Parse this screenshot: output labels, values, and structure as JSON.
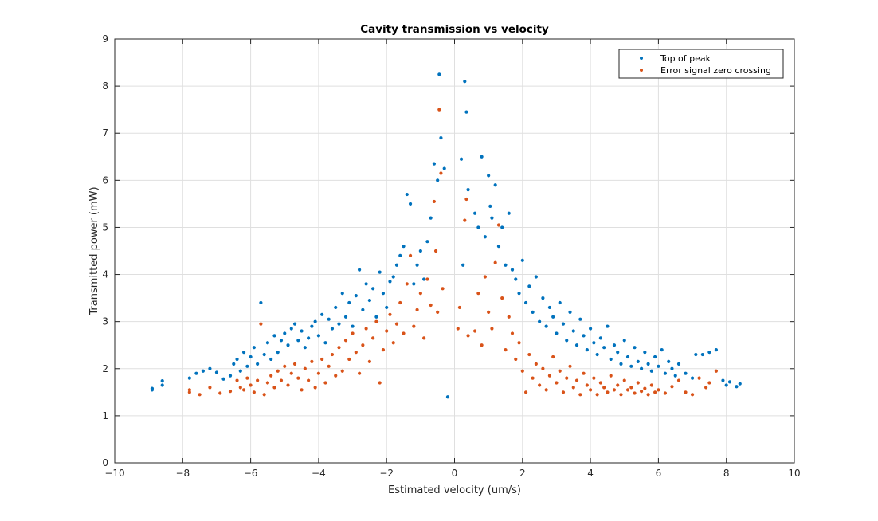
{
  "chart_data": {
    "type": "scatter",
    "title": "Cavity transmission vs velocity",
    "xlabel": "Estimated velocity (um/s)",
    "ylabel": "Transmitted power (mW)",
    "xlim": [
      -10,
      10
    ],
    "ylim": [
      0,
      9
    ],
    "xticks": [
      -10,
      -8,
      -6,
      -4,
      -2,
      0,
      2,
      4,
      6,
      8,
      10
    ],
    "yticks": [
      0,
      1,
      2,
      3,
      4,
      5,
      6,
      7,
      8,
      9
    ],
    "grid": true,
    "legend_position": "top-right",
    "series": [
      {
        "name": "Top of peak",
        "color": "#0072bd",
        "points": [
          [
            -8.9,
            1.55
          ],
          [
            -8.9,
            1.58
          ],
          [
            -8.6,
            1.65
          ],
          [
            -8.6,
            1.74
          ],
          [
            -7.8,
            1.8
          ],
          [
            -7.6,
            1.9
          ],
          [
            -7.4,
            1.95
          ],
          [
            -7.2,
            2.0
          ],
          [
            -7.0,
            1.92
          ],
          [
            -6.8,
            1.78
          ],
          [
            -6.6,
            1.85
          ],
          [
            -6.5,
            2.1
          ],
          [
            -6.4,
            2.2
          ],
          [
            -6.3,
            1.95
          ],
          [
            -6.2,
            2.35
          ],
          [
            -6.1,
            2.05
          ],
          [
            -6.0,
            2.25
          ],
          [
            -5.9,
            2.45
          ],
          [
            -5.8,
            2.1
          ],
          [
            -5.7,
            3.4
          ],
          [
            -5.6,
            2.3
          ],
          [
            -5.5,
            2.55
          ],
          [
            -5.4,
            2.2
          ],
          [
            -5.3,
            2.7
          ],
          [
            -5.2,
            2.35
          ],
          [
            -5.1,
            2.6
          ],
          [
            -5.0,
            2.75
          ],
          [
            -4.9,
            2.5
          ],
          [
            -4.8,
            2.85
          ],
          [
            -4.7,
            2.95
          ],
          [
            -4.6,
            2.6
          ],
          [
            -4.5,
            2.8
          ],
          [
            -4.4,
            2.45
          ],
          [
            -4.3,
            2.65
          ],
          [
            -4.2,
            2.9
          ],
          [
            -4.1,
            3.0
          ],
          [
            -4.0,
            2.7
          ],
          [
            -3.9,
            3.15
          ],
          [
            -3.8,
            2.55
          ],
          [
            -3.7,
            3.05
          ],
          [
            -3.6,
            2.85
          ],
          [
            -3.5,
            3.3
          ],
          [
            -3.4,
            2.95
          ],
          [
            -3.3,
            3.6
          ],
          [
            -3.2,
            3.1
          ],
          [
            -3.1,
            3.4
          ],
          [
            -3.0,
            2.9
          ],
          [
            -2.9,
            3.55
          ],
          [
            -2.8,
            4.1
          ],
          [
            -2.7,
            3.25
          ],
          [
            -2.6,
            3.8
          ],
          [
            -2.5,
            3.45
          ],
          [
            -2.4,
            3.7
          ],
          [
            -2.3,
            3.1
          ],
          [
            -2.2,
            4.05
          ],
          [
            -2.1,
            3.6
          ],
          [
            -2.0,
            3.3
          ],
          [
            -1.9,
            3.85
          ],
          [
            -1.8,
            3.95
          ],
          [
            -1.7,
            4.2
          ],
          [
            -1.6,
            4.4
          ],
          [
            -1.5,
            4.6
          ],
          [
            -1.4,
            5.7
          ],
          [
            -1.3,
            5.5
          ],
          [
            -1.2,
            3.8
          ],
          [
            -1.1,
            4.2
          ],
          [
            -1.0,
            4.5
          ],
          [
            -0.9,
            3.9
          ],
          [
            -0.8,
            4.7
          ],
          [
            -0.7,
            5.2
          ],
          [
            -0.6,
            6.35
          ],
          [
            -0.5,
            6.0
          ],
          [
            -0.45,
            8.25
          ],
          [
            -0.4,
            6.9
          ],
          [
            -0.3,
            6.25
          ],
          [
            -0.2,
            1.4
          ],
          [
            0.2,
            6.45
          ],
          [
            0.3,
            8.1
          ],
          [
            0.35,
            7.45
          ],
          [
            0.25,
            4.2
          ],
          [
            0.4,
            5.8
          ],
          [
            0.6,
            5.3
          ],
          [
            0.7,
            5.0
          ],
          [
            0.8,
            6.5
          ],
          [
            0.9,
            4.8
          ],
          [
            1.0,
            6.1
          ],
          [
            1.05,
            5.45
          ],
          [
            1.1,
            5.2
          ],
          [
            1.2,
            5.9
          ],
          [
            1.3,
            4.6
          ],
          [
            1.4,
            5.0
          ],
          [
            1.5,
            4.2
          ],
          [
            1.6,
            5.3
          ],
          [
            1.7,
            4.1
          ],
          [
            1.8,
            3.9
          ],
          [
            1.9,
            3.6
          ],
          [
            2.0,
            4.3
          ],
          [
            2.1,
            3.4
          ],
          [
            2.2,
            3.75
          ],
          [
            2.3,
            3.2
          ],
          [
            2.4,
            3.95
          ],
          [
            2.5,
            3.0
          ],
          [
            2.6,
            3.5
          ],
          [
            2.7,
            2.9
          ],
          [
            2.8,
            3.3
          ],
          [
            2.9,
            3.1
          ],
          [
            3.0,
            2.75
          ],
          [
            3.1,
            3.4
          ],
          [
            3.2,
            2.95
          ],
          [
            3.3,
            2.6
          ],
          [
            3.4,
            3.2
          ],
          [
            3.5,
            2.8
          ],
          [
            3.6,
            2.5
          ],
          [
            3.7,
            3.05
          ],
          [
            3.8,
            2.7
          ],
          [
            3.9,
            2.4
          ],
          [
            4.0,
            2.85
          ],
          [
            4.1,
            2.55
          ],
          [
            4.2,
            2.3
          ],
          [
            4.3,
            2.65
          ],
          [
            4.4,
            2.45
          ],
          [
            4.5,
            2.9
          ],
          [
            4.6,
            2.2
          ],
          [
            4.7,
            2.5
          ],
          [
            4.8,
            2.35
          ],
          [
            4.9,
            2.1
          ],
          [
            5.0,
            2.6
          ],
          [
            5.1,
            2.25
          ],
          [
            5.2,
            2.05
          ],
          [
            5.3,
            2.45
          ],
          [
            5.4,
            2.15
          ],
          [
            5.5,
            2.0
          ],
          [
            5.6,
            2.35
          ],
          [
            5.7,
            2.1
          ],
          [
            5.8,
            1.95
          ],
          [
            5.9,
            2.25
          ],
          [
            6.0,
            2.05
          ],
          [
            6.1,
            2.4
          ],
          [
            6.2,
            1.9
          ],
          [
            6.3,
            2.15
          ],
          [
            6.4,
            2.0
          ],
          [
            6.5,
            1.85
          ],
          [
            6.6,
            2.1
          ],
          [
            6.8,
            1.9
          ],
          [
            7.0,
            1.8
          ],
          [
            7.1,
            2.3
          ],
          [
            7.3,
            2.3
          ],
          [
            7.5,
            2.35
          ],
          [
            7.7,
            2.4
          ],
          [
            7.9,
            1.75
          ],
          [
            8.0,
            1.65
          ],
          [
            8.1,
            1.72
          ],
          [
            8.3,
            1.62
          ],
          [
            8.4,
            1.68
          ]
        ]
      },
      {
        "name": "Error signal zero crossing",
        "color": "#d95319",
        "points": [
          [
            -7.8,
            1.5
          ],
          [
            -7.8,
            1.55
          ],
          [
            -7.5,
            1.45
          ],
          [
            -7.2,
            1.6
          ],
          [
            -6.9,
            1.48
          ],
          [
            -6.6,
            1.52
          ],
          [
            -6.4,
            1.75
          ],
          [
            -6.3,
            1.6
          ],
          [
            -6.2,
            1.55
          ],
          [
            -6.1,
            1.8
          ],
          [
            -6.0,
            1.65
          ],
          [
            -5.9,
            1.5
          ],
          [
            -5.8,
            1.75
          ],
          [
            -5.7,
            2.95
          ],
          [
            -5.6,
            1.45
          ],
          [
            -5.5,
            1.7
          ],
          [
            -5.4,
            1.85
          ],
          [
            -5.3,
            1.6
          ],
          [
            -5.2,
            1.95
          ],
          [
            -5.1,
            1.75
          ],
          [
            -5.0,
            2.05
          ],
          [
            -4.9,
            1.65
          ],
          [
            -4.8,
            1.9
          ],
          [
            -4.7,
            2.1
          ],
          [
            -4.6,
            1.8
          ],
          [
            -4.5,
            1.55
          ],
          [
            -4.4,
            2.0
          ],
          [
            -4.3,
            1.75
          ],
          [
            -4.2,
            2.15
          ],
          [
            -4.1,
            1.6
          ],
          [
            -4.0,
            1.9
          ],
          [
            -3.9,
            2.2
          ],
          [
            -3.8,
            1.7
          ],
          [
            -3.7,
            2.05
          ],
          [
            -3.6,
            2.3
          ],
          [
            -3.5,
            1.85
          ],
          [
            -3.4,
            2.45
          ],
          [
            -3.3,
            1.95
          ],
          [
            -3.2,
            2.6
          ],
          [
            -3.1,
            2.2
          ],
          [
            -3.0,
            2.75
          ],
          [
            -2.9,
            2.35
          ],
          [
            -2.8,
            1.9
          ],
          [
            -2.7,
            2.5
          ],
          [
            -2.6,
            2.85
          ],
          [
            -2.5,
            2.15
          ],
          [
            -2.4,
            2.65
          ],
          [
            -2.3,
            3.0
          ],
          [
            -2.2,
            1.7
          ],
          [
            -2.1,
            2.4
          ],
          [
            -2.0,
            2.8
          ],
          [
            -1.9,
            3.15
          ],
          [
            -1.8,
            2.55
          ],
          [
            -1.7,
            2.95
          ],
          [
            -1.6,
            3.4
          ],
          [
            -1.5,
            2.75
          ],
          [
            -1.4,
            3.8
          ],
          [
            -1.3,
            4.4
          ],
          [
            -1.2,
            2.9
          ],
          [
            -1.1,
            3.25
          ],
          [
            -1.0,
            3.6
          ],
          [
            -0.9,
            2.65
          ],
          [
            -0.8,
            3.9
          ],
          [
            -0.7,
            3.35
          ],
          [
            -0.6,
            5.55
          ],
          [
            -0.55,
            4.5
          ],
          [
            -0.5,
            3.2
          ],
          [
            -0.45,
            7.5
          ],
          [
            -0.4,
            6.15
          ],
          [
            -0.35,
            3.7
          ],
          [
            0.1,
            2.85
          ],
          [
            0.15,
            3.3
          ],
          [
            0.3,
            5.15
          ],
          [
            0.35,
            5.6
          ],
          [
            0.4,
            2.7
          ],
          [
            0.6,
            2.8
          ],
          [
            0.7,
            3.6
          ],
          [
            0.8,
            2.5
          ],
          [
            0.9,
            3.95
          ],
          [
            1.0,
            3.2
          ],
          [
            1.1,
            2.85
          ],
          [
            1.2,
            4.25
          ],
          [
            1.3,
            5.05
          ],
          [
            1.4,
            3.5
          ],
          [
            1.5,
            2.4
          ],
          [
            1.6,
            3.1
          ],
          [
            1.7,
            2.75
          ],
          [
            1.8,
            2.2
          ],
          [
            1.9,
            2.55
          ],
          [
            2.0,
            1.95
          ],
          [
            2.1,
            1.5
          ],
          [
            2.2,
            2.3
          ],
          [
            2.3,
            1.8
          ],
          [
            2.4,
            2.1
          ],
          [
            2.5,
            1.65
          ],
          [
            2.6,
            2.0
          ],
          [
            2.7,
            1.55
          ],
          [
            2.8,
            1.85
          ],
          [
            2.9,
            2.25
          ],
          [
            3.0,
            1.7
          ],
          [
            3.1,
            1.95
          ],
          [
            3.2,
            1.5
          ],
          [
            3.3,
            1.8
          ],
          [
            3.4,
            2.05
          ],
          [
            3.5,
            1.6
          ],
          [
            3.6,
            1.75
          ],
          [
            3.7,
            1.45
          ],
          [
            3.8,
            1.9
          ],
          [
            3.9,
            1.65
          ],
          [
            4.0,
            1.55
          ],
          [
            4.1,
            1.8
          ],
          [
            4.2,
            1.45
          ],
          [
            4.3,
            1.7
          ],
          [
            4.4,
            1.6
          ],
          [
            4.5,
            1.5
          ],
          [
            4.6,
            1.85
          ],
          [
            4.7,
            1.55
          ],
          [
            4.8,
            1.65
          ],
          [
            4.9,
            1.45
          ],
          [
            5.0,
            1.75
          ],
          [
            5.1,
            1.55
          ],
          [
            5.2,
            1.6
          ],
          [
            5.3,
            1.48
          ],
          [
            5.4,
            1.7
          ],
          [
            5.5,
            1.52
          ],
          [
            5.6,
            1.58
          ],
          [
            5.7,
            1.45
          ],
          [
            5.8,
            1.65
          ],
          [
            5.9,
            1.5
          ],
          [
            6.0,
            1.55
          ],
          [
            6.2,
            1.48
          ],
          [
            6.4,
            1.62
          ],
          [
            6.6,
            1.75
          ],
          [
            6.8,
            1.5
          ],
          [
            7.0,
            1.45
          ],
          [
            7.2,
            1.8
          ],
          [
            7.4,
            1.6
          ],
          [
            7.5,
            1.7
          ],
          [
            7.7,
            1.95
          ]
        ]
      }
    ]
  }
}
